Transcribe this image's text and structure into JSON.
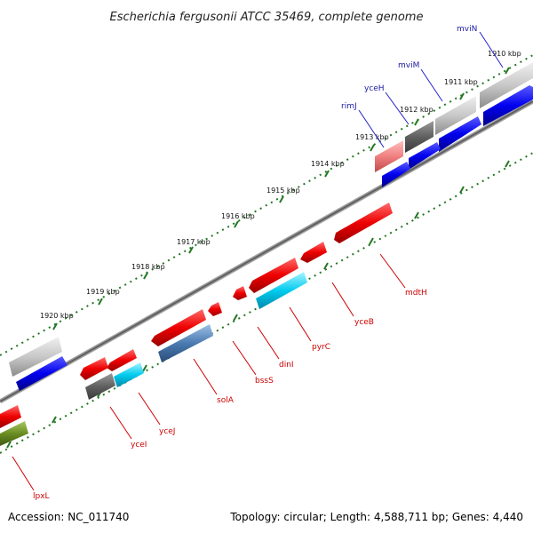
{
  "title": "Escherichia fergusonii ATCC 35469, complete genome",
  "footer": {
    "accession": "Accession: NC_011740",
    "summary": "Topology: circular; Length: 4,588,711 bp; Genes: 4,440"
  },
  "ticks": [
    {
      "label": "1910 kbp"
    },
    {
      "label": "1911 kbp"
    },
    {
      "label": "1912 kbp"
    },
    {
      "label": "1913 kbp"
    },
    {
      "label": "1914 kbp"
    },
    {
      "label": "1915 kbp"
    },
    {
      "label": "1916 kbp"
    },
    {
      "label": "1917 kbp"
    },
    {
      "label": "1918 kbp"
    },
    {
      "label": "1919 kbp"
    },
    {
      "label": "1920 kbp"
    }
  ],
  "genes_forward": [
    {
      "name": "mviN",
      "color": "#1a1aa0"
    },
    {
      "name": "mviM",
      "color": "#1a1aa0"
    },
    {
      "name": "yceH",
      "color": "#1a1aa0"
    },
    {
      "name": "rimJ",
      "color": "#1a1aa0"
    }
  ],
  "genes_reverse": [
    {
      "name": "mdtH",
      "color": "#cc0000"
    },
    {
      "name": "yceB",
      "color": "#cc0000"
    },
    {
      "name": "pyrC",
      "color": "#cc0000"
    },
    {
      "name": "dinI",
      "color": "#cc0000"
    },
    {
      "name": "bssS",
      "color": "#cc0000"
    },
    {
      "name": "solA",
      "color": "#cc0000"
    },
    {
      "name": "yceJ",
      "color": "#cc0000"
    },
    {
      "name": "yceI",
      "color": "#cc0000"
    },
    {
      "name": "lpxL",
      "color": "#cc0000"
    }
  ],
  "colors": {
    "forward_cds": "#0000ee",
    "reverse_cds": "#ee0000",
    "backbone": "#808080",
    "tick_marks": "#227722",
    "cyan_feature": "#00ccee",
    "steel_feature": "#4a7ab0",
    "olive_feature": "#6b8e23",
    "gray_feature": "#c0c0c0",
    "dark_gray_feature": "#606060",
    "pink_feature": "#f08080"
  }
}
